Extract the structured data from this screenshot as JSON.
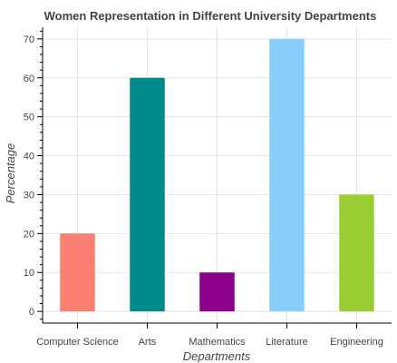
{
  "chart_data": {
    "type": "bar",
    "title": "Women Representation in Different University Departments",
    "xlabel": "Departments",
    "ylabel": "Percentage",
    "categories": [
      "Computer Science",
      "Arts",
      "Mathematics",
      "Literature",
      "Engineering"
    ],
    "values": [
      20,
      60,
      10,
      70,
      30
    ],
    "colors": [
      "#fa8072",
      "#008b8b",
      "#8b008b",
      "#87cefa",
      "#9acd32"
    ],
    "ylim": [
      -3,
      73
    ],
    "yticks": [
      0,
      10,
      20,
      30,
      40,
      50,
      60,
      70
    ],
    "grid": true,
    "legend": "none"
  }
}
